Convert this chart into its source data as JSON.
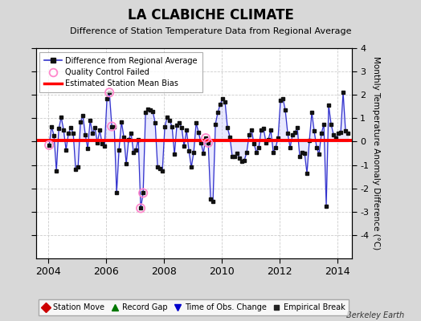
{
  "title": "LA CLABICHE CLIMATE",
  "subtitle": "Difference of Station Temperature Data from Regional Average",
  "ylabel": "Monthly Temperature Anomaly Difference (°C)",
  "xlabel_years": [
    2004,
    2006,
    2008,
    2010,
    2012,
    2014
  ],
  "xlim": [
    2003.58,
    2014.5
  ],
  "ylim": [
    -5,
    4
  ],
  "yticks": [
    -4,
    -3,
    -2,
    -1,
    0,
    1,
    2,
    3,
    4
  ],
  "bias_value": 0.05,
  "background_color": "#d8d8d8",
  "plot_bg_color": "#ffffff",
  "line_color": "#3333cc",
  "line_fill_color": "#aaaaff",
  "bias_color": "#ff0000",
  "marker_color": "#111111",
  "qc_fail_color": "#ff88cc",
  "watermark": "Berkeley Earth",
  "data_x": [
    2004.042,
    2004.125,
    2004.208,
    2004.292,
    2004.375,
    2004.458,
    2004.542,
    2004.625,
    2004.708,
    2004.792,
    2004.875,
    2004.958,
    2005.042,
    2005.125,
    2005.208,
    2005.292,
    2005.375,
    2005.458,
    2005.542,
    2005.625,
    2005.708,
    2005.792,
    2005.875,
    2005.958,
    2006.042,
    2006.125,
    2006.208,
    2006.292,
    2006.375,
    2006.458,
    2006.542,
    2006.625,
    2006.708,
    2006.792,
    2006.875,
    2006.958,
    2007.042,
    2007.125,
    2007.208,
    2007.292,
    2007.375,
    2007.458,
    2007.542,
    2007.625,
    2007.708,
    2007.792,
    2007.875,
    2007.958,
    2008.042,
    2008.125,
    2008.208,
    2008.292,
    2008.375,
    2008.458,
    2008.542,
    2008.625,
    2008.708,
    2008.792,
    2008.875,
    2008.958,
    2009.042,
    2009.125,
    2009.208,
    2009.292,
    2009.375,
    2009.458,
    2009.542,
    2009.625,
    2009.708,
    2009.792,
    2009.875,
    2009.958,
    2010.042,
    2010.125,
    2010.208,
    2010.292,
    2010.375,
    2010.458,
    2010.542,
    2010.625,
    2010.708,
    2010.792,
    2010.875,
    2010.958,
    2011.042,
    2011.125,
    2011.208,
    2011.292,
    2011.375,
    2011.458,
    2011.542,
    2011.625,
    2011.708,
    2011.792,
    2011.875,
    2011.958,
    2012.042,
    2012.125,
    2012.208,
    2012.292,
    2012.375,
    2012.458,
    2012.542,
    2012.625,
    2012.708,
    2012.792,
    2012.875,
    2012.958,
    2013.042,
    2013.125,
    2013.208,
    2013.292,
    2013.375,
    2013.458,
    2013.542,
    2013.625,
    2013.708,
    2013.792,
    2013.875,
    2013.958,
    2014.042,
    2014.125,
    2014.208,
    2014.292,
    2014.375
  ],
  "data_y": [
    -0.15,
    0.65,
    0.25,
    -1.25,
    0.55,
    1.05,
    0.5,
    -0.35,
    0.35,
    0.6,
    0.35,
    -1.2,
    -1.1,
    0.85,
    1.1,
    0.3,
    -0.3,
    0.9,
    0.35,
    0.6,
    -0.05,
    0.5,
    -0.1,
    -0.2,
    1.85,
    2.1,
    0.65,
    0.65,
    -2.2,
    -0.35,
    0.85,
    0.2,
    -0.95,
    0.1,
    0.35,
    -0.45,
    -0.35,
    0.1,
    -2.85,
    -2.2,
    1.25,
    1.4,
    1.35,
    1.3,
    0.8,
    -1.1,
    -1.15,
    -1.25,
    0.65,
    1.05,
    0.9,
    0.65,
    -0.55,
    0.7,
    0.8,
    0.6,
    -0.2,
    0.5,
    -0.4,
    -1.1,
    -0.45,
    0.8,
    0.4,
    -0.05,
    -0.5,
    0.15,
    -0.05,
    -2.45,
    -2.55,
    0.75,
    1.25,
    1.6,
    1.85,
    1.7,
    0.6,
    0.2,
    -0.65,
    -0.65,
    -0.5,
    -0.7,
    -0.85,
    -0.8,
    -0.45,
    0.3,
    0.5,
    -0.1,
    -0.45,
    -0.25,
    0.5,
    0.55,
    -0.05,
    0.1,
    0.5,
    -0.45,
    -0.25,
    0.15,
    1.75,
    1.85,
    1.35,
    0.35,
    -0.25,
    0.3,
    0.4,
    0.6,
    -0.65,
    -0.45,
    -0.5,
    -1.35,
    0.05,
    1.25,
    0.45,
    -0.25,
    -0.55,
    0.35,
    0.75,
    -2.75,
    1.55,
    0.75,
    0.3,
    0.15,
    0.35,
    0.4,
    2.1,
    0.45,
    0.35
  ],
  "qc_fail_x": [
    2004.042,
    2006.125,
    2006.208,
    2007.208,
    2007.292,
    2009.458,
    2009.542
  ],
  "qc_fail_y": [
    -0.15,
    2.1,
    0.65,
    -2.85,
    -2.2,
    0.15,
    -0.05
  ]
}
